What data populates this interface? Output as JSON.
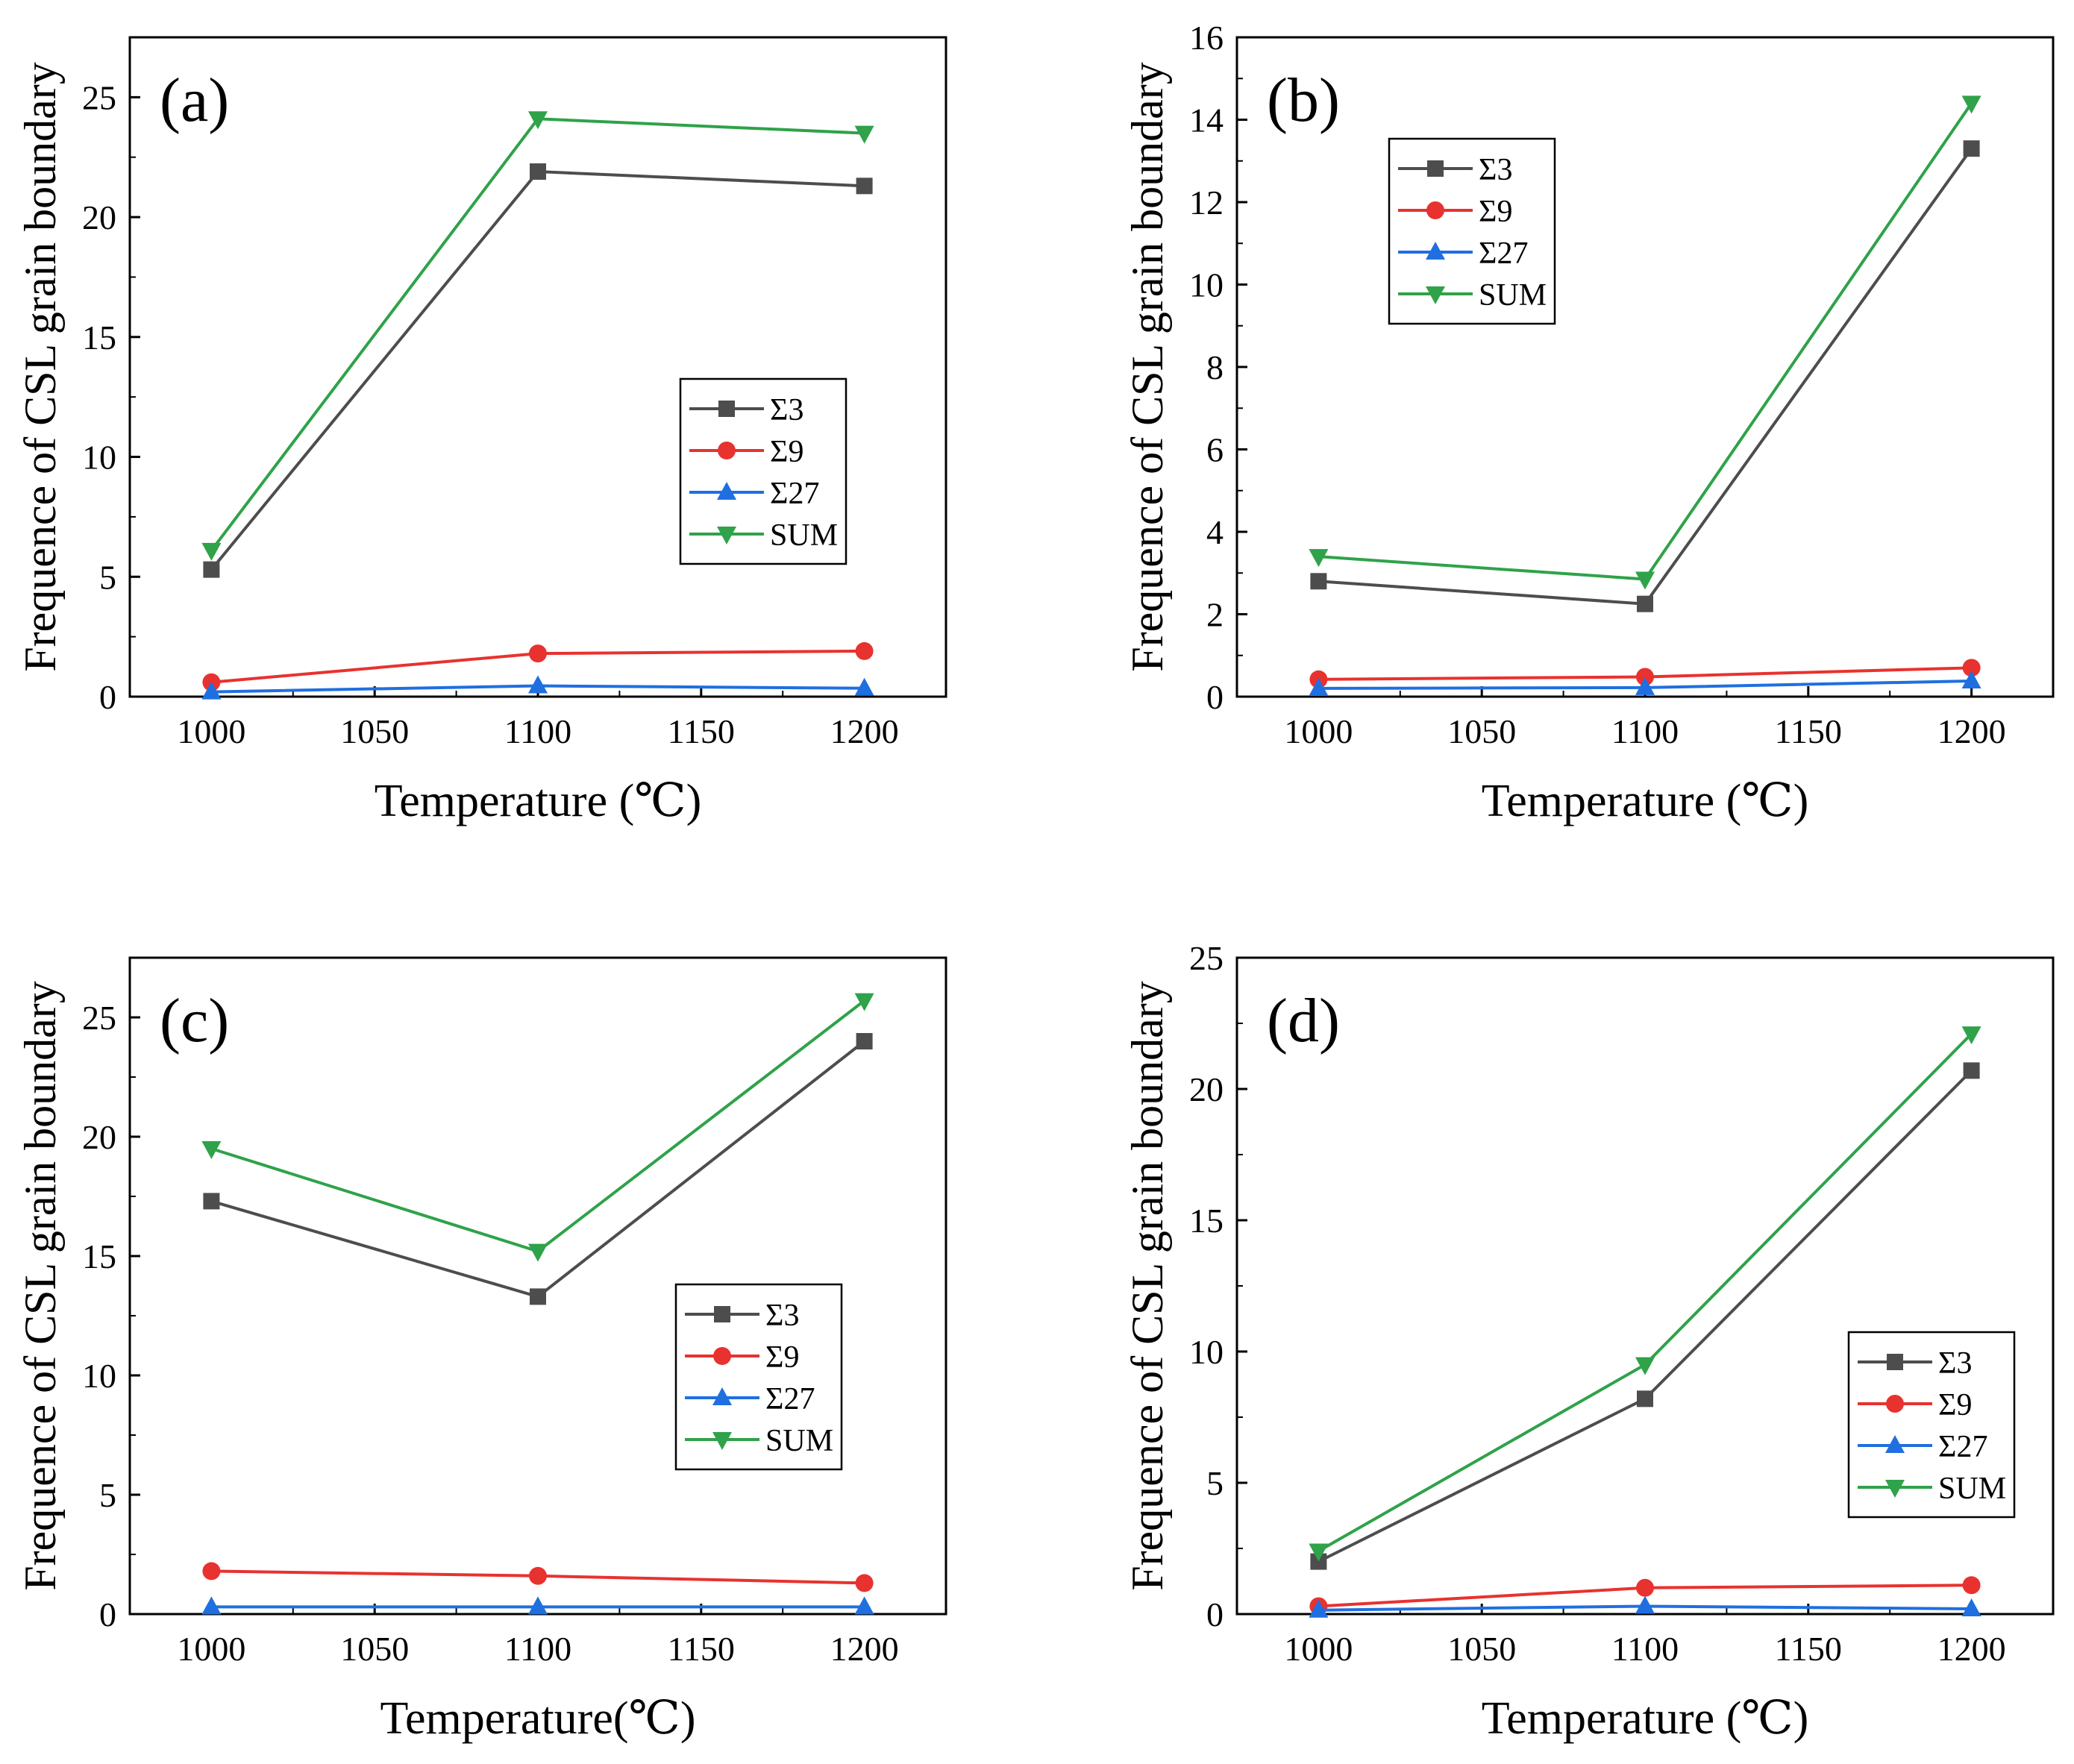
{
  "figure": {
    "description_ids": [
      "a",
      "b",
      "c",
      "d"
    ]
  },
  "colors": {
    "s3": "#4d4d4d",
    "s9": "#e8322f",
    "s27": "#1f6fe0",
    "sum": "#2fa24a",
    "axis": "#000000"
  },
  "chart_data": [
    {
      "id": "a",
      "type": "line",
      "panel_label": "(a)",
      "xlabel": "Temperature (℃)",
      "ylabel": "Frequence of CSL grain boundary",
      "x": [
        1000,
        1100,
        1200
      ],
      "xlim": [
        975,
        1225
      ],
      "xticks": [
        "1000",
        "1050",
        "1100",
        "1150",
        "1200"
      ],
      "ylim": [
        0,
        27.5
      ],
      "yticks": [
        "0",
        "5",
        "10",
        "15",
        "20",
        "25"
      ],
      "legend_position": "center-right",
      "series": [
        {
          "key": "s3",
          "name": "Σ3",
          "marker": "square",
          "values": [
            5.3,
            21.9,
            21.3
          ]
        },
        {
          "key": "s9",
          "name": "Σ9",
          "marker": "circle",
          "values": [
            0.6,
            1.8,
            1.9
          ]
        },
        {
          "key": "s27",
          "name": "Σ27",
          "marker": "triangle-up",
          "values": [
            0.2,
            0.45,
            0.35
          ]
        },
        {
          "key": "sum",
          "name": "SUM",
          "marker": "triangle-down",
          "values": [
            6.1,
            24.1,
            23.5
          ]
        }
      ]
    },
    {
      "id": "b",
      "type": "line",
      "panel_label": "(b)",
      "xlabel": "Temperature (℃)",
      "ylabel": "Frequence of CSL grain boundary",
      "x": [
        1000,
        1100,
        1200
      ],
      "xlim": [
        975,
        1225
      ],
      "xticks": [
        "1000",
        "1050",
        "1100",
        "1150",
        "1200"
      ],
      "ylim": [
        0,
        16
      ],
      "yticks": [
        "0",
        "2",
        "4",
        "6",
        "8",
        "10",
        "12",
        "14",
        "16"
      ],
      "legend_position": "top-left",
      "series": [
        {
          "key": "s3",
          "name": "Σ3",
          "marker": "square",
          "values": [
            2.8,
            2.25,
            13.3
          ]
        },
        {
          "key": "s9",
          "name": "Σ9",
          "marker": "circle",
          "values": [
            0.42,
            0.48,
            0.7
          ]
        },
        {
          "key": "s27",
          "name": "Σ27",
          "marker": "triangle-up",
          "values": [
            0.2,
            0.22,
            0.38
          ]
        },
        {
          "key": "sum",
          "name": "SUM",
          "marker": "triangle-down",
          "values": [
            3.4,
            2.85,
            14.4
          ]
        }
      ]
    },
    {
      "id": "c",
      "type": "line",
      "panel_label": "(c)",
      "xlabel": "Temperature(℃)",
      "ylabel": "Frequence of CSL grain boundary",
      "x": [
        1000,
        1100,
        1200
      ],
      "xlim": [
        975,
        1225
      ],
      "xticks": [
        "1000",
        "1050",
        "1100",
        "1150",
        "1200"
      ],
      "ylim": [
        0,
        27.5
      ],
      "yticks": [
        "0",
        "5",
        "10",
        "15",
        "20",
        "25"
      ],
      "legend_position": "center-right",
      "series": [
        {
          "key": "s3",
          "name": "Σ3",
          "marker": "square",
          "values": [
            17.3,
            13.3,
            24.0
          ]
        },
        {
          "key": "s9",
          "name": "Σ9",
          "marker": "circle",
          "values": [
            1.8,
            1.6,
            1.3
          ]
        },
        {
          "key": "s27",
          "name": "Σ27",
          "marker": "triangle-up",
          "values": [
            0.3,
            0.3,
            0.3
          ]
        },
        {
          "key": "sum",
          "name": "SUM",
          "marker": "triangle-down",
          "values": [
            19.5,
            15.2,
            25.7
          ]
        }
      ]
    },
    {
      "id": "d",
      "type": "line",
      "panel_label": "(d)",
      "xlabel": "Temperature (℃)",
      "ylabel": "Frequence of CSL grain boundary",
      "x": [
        1000,
        1100,
        1200
      ],
      "xlim": [
        975,
        1225
      ],
      "xticks": [
        "1000",
        "1050",
        "1100",
        "1150",
        "1200"
      ],
      "ylim": [
        0,
        25
      ],
      "yticks": [
        "0",
        "5",
        "10",
        "15",
        "20",
        "25"
      ],
      "legend_position": "bottom-right",
      "series": [
        {
          "key": "s3",
          "name": "Σ3",
          "marker": "square",
          "values": [
            2.0,
            8.2,
            20.7
          ]
        },
        {
          "key": "s9",
          "name": "Σ9",
          "marker": "circle",
          "values": [
            0.3,
            1.0,
            1.1
          ]
        },
        {
          "key": "s27",
          "name": "Σ27",
          "marker": "triangle-up",
          "values": [
            0.15,
            0.3,
            0.2
          ]
        },
        {
          "key": "sum",
          "name": "SUM",
          "marker": "triangle-down",
          "values": [
            2.4,
            9.5,
            22.1
          ]
        }
      ]
    }
  ]
}
